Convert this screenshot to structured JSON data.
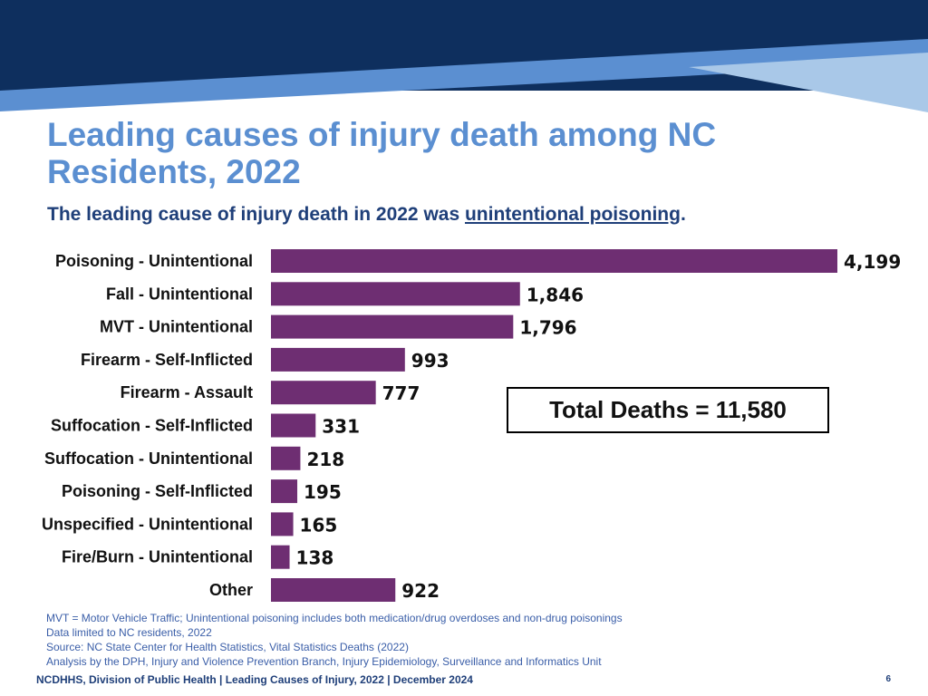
{
  "slide": {
    "title": "Leading causes of injury death among NC Residents, 2022",
    "subtitle_before": "The leading cause of injury death in 2022 was ",
    "subtitle_emphasis": "unintentional poisoning",
    "subtitle_after": ".",
    "total_box": "Total Deaths = 11,580",
    "notes": [
      "MVT = Motor Vehicle Traffic; Unintentional poisoning includes both medication/drug overdoses and non-drug poisonings",
      "Data limited to NC residents, 2022",
      "Source: NC State Center for Health Statistics, Vital Statistics Deaths (2022)",
      "Analysis by the DPH, Injury and Violence Prevention Branch, Injury Epidemiology, Surveillance and Informatics Unit"
    ],
    "footer": "NCDHHS, Division of Public Health | Leading Causes of Injury, 2022 | December 2024",
    "page_number": "6"
  },
  "colors": {
    "banner_dark": "#0e2f5e",
    "banner_mid": "#5b8fd1",
    "banner_light": "#a9c8e8",
    "bar": "#6e2e72",
    "title": "#5b8fd1",
    "subtitle": "#1f3f79"
  },
  "chart_data": {
    "type": "bar",
    "orientation": "horizontal",
    "categories": [
      "Poisoning - Unintentional",
      "Fall - Unintentional",
      "MVT - Unintentional",
      "Firearm - Self-Inflicted",
      "Firearm - Assault",
      "Suffocation - Self-Inflicted",
      "Suffocation - Unintentional",
      "Poisoning - Self-Inflicted",
      "Unspecified - Unintentional",
      "Fire/Burn - Unintentional",
      "Other"
    ],
    "values": [
      4199,
      1846,
      1796,
      993,
      777,
      331,
      218,
      195,
      165,
      138,
      922
    ],
    "value_labels": [
      "4,199",
      "1,846",
      "1,796",
      "993",
      "777",
      "331",
      "218",
      "195",
      "165",
      "138",
      "922"
    ],
    "title": "",
    "xlabel": "",
    "ylabel": "",
    "xlim": [
      0,
      4199
    ],
    "grid": false,
    "legend": "none"
  }
}
